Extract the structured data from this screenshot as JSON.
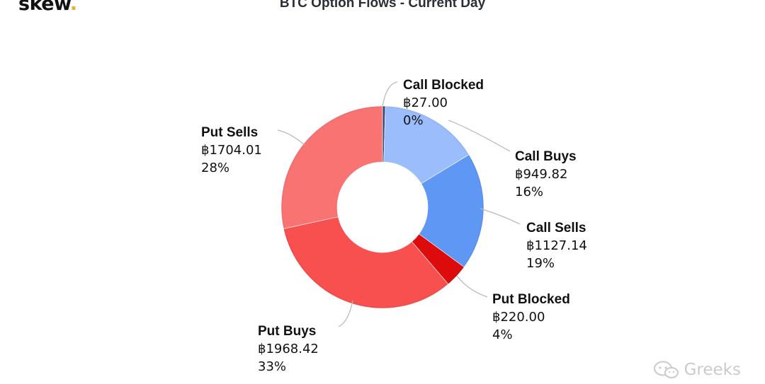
{
  "brand": {
    "name": "skew",
    "dot": "."
  },
  "watermark": {
    "text": "Greeks",
    "icon": "wechat-icon"
  },
  "chart_data": {
    "type": "pie",
    "variant": "donut",
    "title": "BTC Option Flows - Current Day",
    "slices": [
      {
        "label": "Call Blocked",
        "value_text": "฿27.00",
        "pct_text": "0%",
        "value": 27.0,
        "color": "#3b4a73"
      },
      {
        "label": "Call Buys",
        "value_text": "฿949.82",
        "pct_text": "16%",
        "value": 949.82,
        "color": "#9bbdfb"
      },
      {
        "label": "Call Sells",
        "value_text": "฿1127.14",
        "pct_text": "19%",
        "value": 1127.14,
        "color": "#5f97f4"
      },
      {
        "label": "Put Blocked",
        "value_text": "฿220.00",
        "pct_text": "4%",
        "value": 220.0,
        "color": "#dd0b0b"
      },
      {
        "label": "Put Buys",
        "value_text": "฿1968.42",
        "pct_text": "33%",
        "value": 1968.42,
        "color": "#f84f4f"
      },
      {
        "label": "Put Sells",
        "value_text": "฿1704.01",
        "pct_text": "28%",
        "value": 1704.01,
        "color": "#fa7373"
      }
    ]
  }
}
